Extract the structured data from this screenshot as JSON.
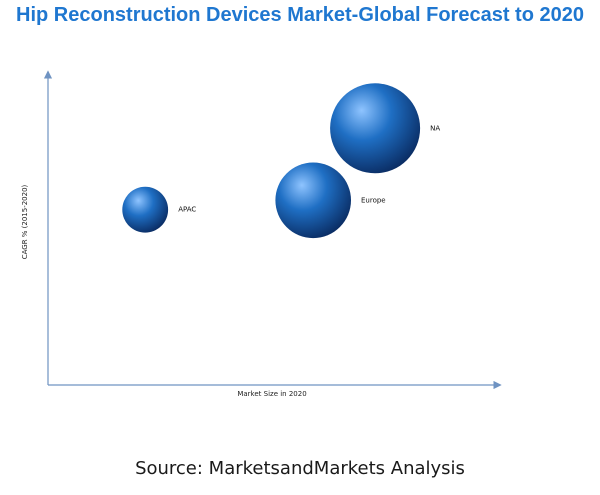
{
  "chart_data": {
    "type": "bubble",
    "title": "Hip Reconstruction Devices Market-Global Forecast to 2020",
    "xlabel": "Market Size in 2020",
    "ylabel": "CAGR % (2015-2020)",
    "xlim": [
      0,
      100
    ],
    "ylim": [
      0,
      100
    ],
    "axis_tick_labels": false,
    "grid": false,
    "legend": "none",
    "points": [
      {
        "label": "NA",
        "x": 74,
        "y": 82,
        "size": 1.0
      },
      {
        "label": "Europe",
        "x": 60,
        "y": 59,
        "size": 0.84
      },
      {
        "label": "APAC",
        "x": 22,
        "y": 56,
        "size": 0.51
      }
    ],
    "colors": {
      "title": "#1f77d0",
      "axis": "#6f93c2",
      "bubble_highlight": "#8fc4ff",
      "bubble_mid": "#1f6fc4",
      "bubble_dark": "#0a2c63"
    }
  },
  "footer": {
    "source": "Source: MarketsandMarkets Analysis"
  }
}
